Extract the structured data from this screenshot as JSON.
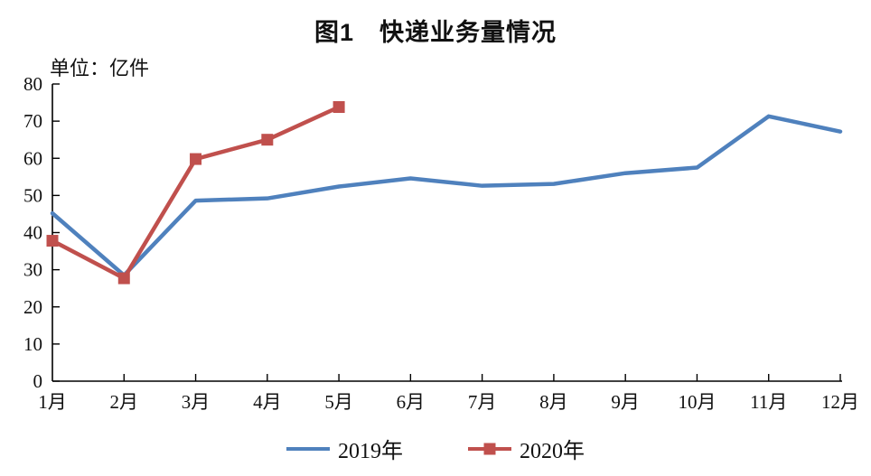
{
  "title": "图1　快递业务量情况",
  "unit_label": "单位：亿件",
  "colors": {
    "series_2019": "#4F81BD",
    "series_2020": "#C0504D",
    "axis": "#000000",
    "background": "#FFFFFF",
    "text": "#111111"
  },
  "legend": {
    "position": "bottom",
    "items": [
      {
        "label": "2019年",
        "swatch": "line"
      },
      {
        "label": "2020年",
        "swatch": "line-with-square"
      }
    ]
  },
  "chart_data": {
    "type": "line",
    "title": "图1　快递业务量情况",
    "unit": "亿件",
    "xlabel": "",
    "ylabel": "单位：亿件",
    "categories": [
      "1月",
      "2月",
      "3月",
      "4月",
      "5月",
      "6月",
      "7月",
      "8月",
      "9月",
      "10月",
      "11月",
      "12月"
    ],
    "series": [
      {
        "name": "2019年",
        "color": "#4F81BD",
        "marker": "none",
        "values": [
          45.2,
          28.5,
          48.6,
          49.2,
          52.4,
          54.6,
          52.6,
          53.1,
          56.0,
          57.5,
          71.3,
          67.2
        ]
      },
      {
        "name": "2020年",
        "color": "#C0504D",
        "marker": "square",
        "values": [
          37.8,
          27.7,
          59.8,
          65.0,
          73.8
        ]
      }
    ],
    "ylim": [
      0,
      80
    ],
    "ytick_step": 10,
    "grid": false,
    "legend_position": "bottom"
  }
}
